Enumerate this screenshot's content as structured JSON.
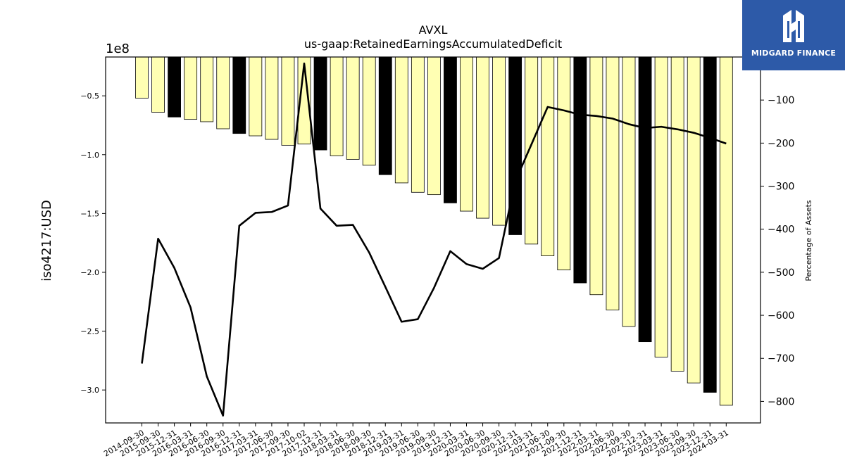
{
  "logo": {
    "text": "MIDGARD FINANCE",
    "background": "#2d5aa8"
  },
  "chart_data": {
    "type": "bar",
    "title": "AVXL",
    "subtitle": "us-gaap:RetainedEarningsAccumulatedDeficit",
    "ylabel": "iso4217:USD",
    "y2label": "Percentage of Assets",
    "offset_label": "1e8",
    "ylim": [
      -3.28,
      -0.17
    ],
    "y2lim": [
      -850,
      0
    ],
    "yticks": [
      -0.5,
      -1.0,
      -1.5,
      -2.0,
      -2.5,
      -3.0
    ],
    "y2ticks": [
      -100,
      -200,
      -300,
      -400,
      -500,
      -600,
      -700,
      -800
    ],
    "categories": [
      "2014-09-30",
      "2015-09-30",
      "2015-12-31",
      "2016-03-31",
      "2016-06-30",
      "2016-09-30",
      "2016-12-31",
      "2017-03-31",
      "2017-06-30",
      "2017-09-30",
      "2017-10-02",
      "2017-12-31",
      "2018-03-31",
      "2018-06-30",
      "2018-09-30",
      "2018-12-31",
      "2019-03-31",
      "2019-06-30",
      "2019-09-30",
      "2019-12-31",
      "2020-03-31",
      "2020-06-30",
      "2020-09-30",
      "2020-12-31",
      "2021-03-31",
      "2021-06-30",
      "2021-09-30",
      "2021-12-31",
      "2022-03-31",
      "2022-06-30",
      "2022-09-30",
      "2022-12-31",
      "2023-03-31",
      "2023-06-30",
      "2023-09-30",
      "2023-12-31",
      "2024-03-31"
    ],
    "series": [
      {
        "type": "bar",
        "values": [
          -0.52,
          -0.64,
          -0.68,
          -0.7,
          -0.72,
          -0.78,
          -0.82,
          -0.84,
          -0.87,
          -0.92,
          -0.91,
          -0.96,
          -1.01,
          -1.04,
          -1.09,
          -1.17,
          -1.24,
          -1.32,
          -1.34,
          -1.41,
          -1.48,
          -1.54,
          -1.6,
          -1.68,
          -1.76,
          -1.86,
          -1.98,
          -2.09,
          -2.19,
          -2.32,
          -2.46,
          -2.59,
          -2.72,
          -2.84,
          -2.94,
          -3.02,
          -3.13
        ],
        "colors": [
          "#ffffb3",
          "#ffffb3",
          "#000000",
          "#ffffb3",
          "#ffffb3",
          "#ffffb3",
          "#000000",
          "#ffffb3",
          "#ffffb3",
          "#ffffb3",
          "#ffffb3",
          "#000000",
          "#ffffb3",
          "#ffffb3",
          "#ffffb3",
          "#000000",
          "#ffffb3",
          "#ffffb3",
          "#ffffb3",
          "#000000",
          "#ffffb3",
          "#ffffb3",
          "#ffffb3",
          "#000000",
          "#ffffb3",
          "#ffffb3",
          "#ffffb3",
          "#000000",
          "#ffffb3",
          "#ffffb3",
          "#ffffb3",
          "#000000",
          "#ffffb3",
          "#ffffb3",
          "#ffffb3",
          "#000000",
          "#ffffb3"
        ]
      },
      {
        "type": "line",
        "axis": "right",
        "color": "#000000",
        "values": [
          -712,
          -422,
          -490,
          -582,
          -742,
          -833,
          -392,
          -362,
          -360,
          -345,
          -15,
          -352,
          -392,
          -390,
          -454,
          -534,
          -615,
          -609,
          -536,
          -451,
          -481,
          -492,
          -467,
          -289,
          -203,
          -116,
          -124,
          -134,
          -137,
          -143,
          -156,
          -165,
          -162,
          -168,
          -176,
          -188,
          -201
        ]
      }
    ]
  }
}
